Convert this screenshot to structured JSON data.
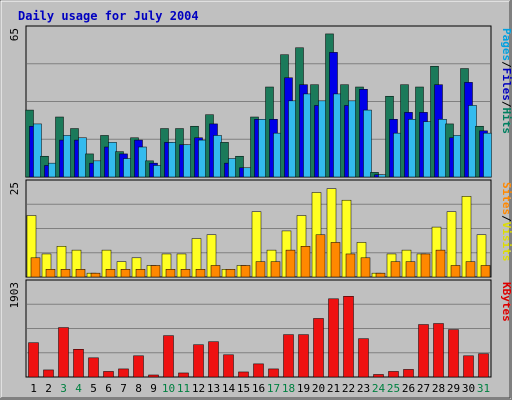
{
  "chart_data": {
    "type": "bar",
    "title": "Daily usage for July 2004",
    "days": [
      "1",
      "2",
      "3",
      "4",
      "5",
      "6",
      "7",
      "8",
      "9",
      "10",
      "11",
      "12",
      "13",
      "14",
      "15",
      "16",
      "17",
      "18",
      "19",
      "20",
      "21",
      "22",
      "23",
      "24",
      "25",
      "26",
      "27",
      "28",
      "29",
      "30",
      "31"
    ],
    "weekend_days": [
      "3",
      "4",
      "10",
      "11",
      "17",
      "18",
      "24",
      "25",
      "31"
    ],
    "panels": [
      {
        "id": "top",
        "max_label": "65",
        "ymax": 65,
        "right_label": [
          "Pages",
          "/",
          "Files",
          "/",
          "Hits"
        ],
        "right_label_colors": [
          "#00a0e0",
          "#000000",
          "#0000c0",
          "#000000",
          "#008060"
        ],
        "series": [
          {
            "name": "Hits",
            "color": "#1b7a5a",
            "values": [
              29,
              9,
              26,
              21,
              10,
              18,
              11,
              17,
              7,
              21,
              21,
              22,
              27,
              15,
              9,
              26,
              39,
              53,
              56,
              40,
              62,
              40,
              39,
              2,
              35,
              40,
              39,
              48,
              23,
              47,
              22
            ]
          },
          {
            "name": "Files",
            "color": "#0000e8",
            "values": [
              22,
              5,
              16,
              16,
              6,
              13,
              10,
              16,
              6,
              15,
              14,
              17,
              23,
              6,
              4,
              25,
              25,
              43,
              40,
              31,
              54,
              31,
              38,
              1,
              25,
              28,
              28,
              40,
              17,
              41,
              20
            ]
          },
          {
            "name": "Pages",
            "color": "#33bbee",
            "values": [
              23,
              6,
              18,
              17,
              7,
              15,
              8,
              13,
              5,
              15,
              14,
              16,
              18,
              8,
              4,
              25,
              19,
              33,
              36,
              33,
              36,
              33,
              29,
              1,
              19,
              25,
              24,
              25,
              18,
              31,
              19
            ]
          }
        ]
      },
      {
        "id": "middle",
        "max_label": "25",
        "ymax": 25,
        "right_label": [
          "Sites",
          "/",
          "Visits"
        ],
        "right_label_colors": [
          "#ff8800",
          "#000000",
          "#dddd00"
        ],
        "series": [
          {
            "name": "Visits",
            "color": "#ffff22",
            "values": [
              16,
              6,
              8,
              7,
              1,
              7,
              4,
              5,
              3,
              6,
              6,
              10,
              11,
              2,
              3,
              17,
              7,
              12,
              16,
              22,
              23,
              20,
              9,
              1,
              6,
              7,
              6,
              13,
              17,
              21,
              11
            ]
          },
          {
            "name": "Sites",
            "color": "#ff8800",
            "values": [
              5,
              2,
              2,
              2,
              1,
              2,
              2,
              2,
              3,
              2,
              2,
              2,
              3,
              2,
              3,
              4,
              4,
              7,
              8,
              11,
              9,
              6,
              5,
              1,
              4,
              4,
              6,
              7,
              3,
              4,
              3
            ]
          }
        ]
      },
      {
        "id": "bottom",
        "max_label": "1903",
        "ymax": 1903,
        "right_label": [
          "KBytes"
        ],
        "right_label_colors": [
          "#dd0000"
        ],
        "series": [
          {
            "name": "KBytes",
            "color": "#ee1111",
            "values": [
              680,
              140,
              980,
              550,
              380,
              110,
              160,
              420,
              40,
              820,
              80,
              640,
              700,
              440,
              100,
              260,
              160,
              840,
              840,
              1160,
              1550,
              1600,
              760,
              50,
              110,
              150,
              1040,
              1060,
              940,
              420,
              460
            ]
          }
        ]
      }
    ]
  }
}
